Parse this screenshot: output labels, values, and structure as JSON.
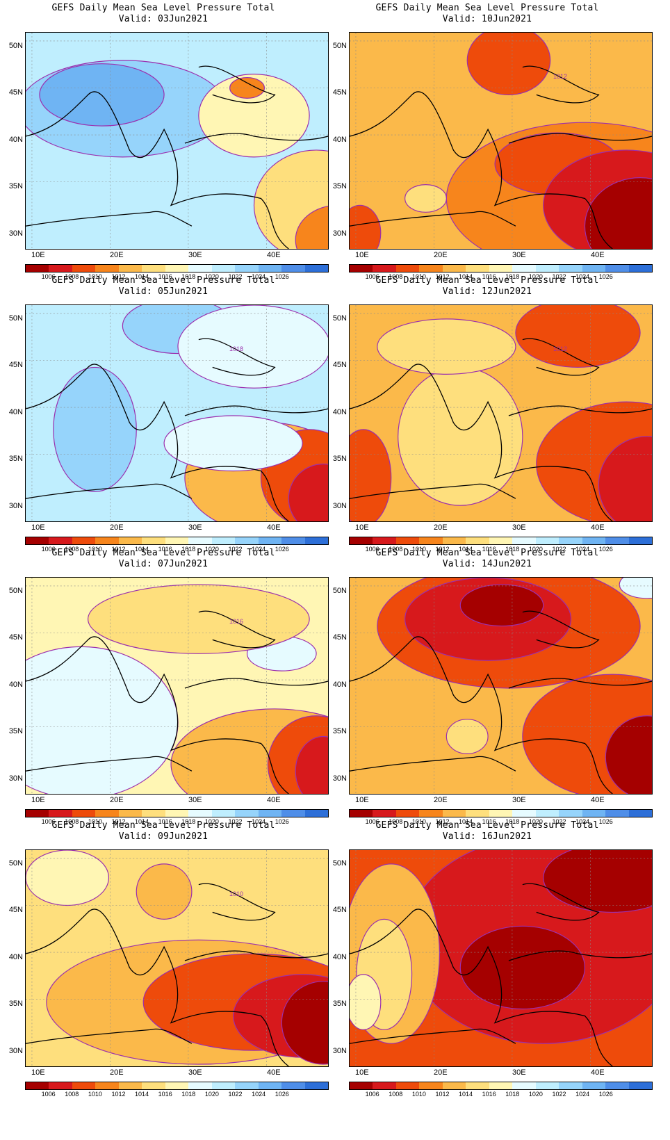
{
  "title_line": "GEFS Daily Mean Sea Level Pressure Total",
  "lat_labels": [
    "50N",
    "45N",
    "40N",
    "35N",
    "30N"
  ],
  "lon_labels": [
    "10E",
    "20E",
    "30E",
    "40E"
  ],
  "colorbar": {
    "labels": [
      "1006",
      "1008",
      "1010",
      "1012",
      "1014",
      "1016",
      "1018",
      "1020",
      "1022",
      "1024",
      "1026"
    ],
    "colors": [
      "#a50000",
      "#d7191c",
      "#ee4b0b",
      "#f7851c",
      "#fbb94a",
      "#fedf7d",
      "#fff6b4",
      "#e6fbff",
      "#bfeefe",
      "#96d4fb",
      "#6fb4f3",
      "#4f8ee8",
      "#2d6fd8"
    ]
  },
  "panels": [
    {
      "valid": "Valid: 03Jun2021",
      "base": "#bfeefe",
      "label": "",
      "blobs": [
        [
          "#96d4fb",
          140,
          110,
          150,
          70
        ],
        [
          "#6fb4f3",
          110,
          90,
          90,
          45
        ],
        [
          "#fedf7d",
          420,
          250,
          90,
          80
        ],
        [
          "#f7851c",
          450,
          300,
          60,
          50
        ],
        [
          "#fff6b4",
          330,
          120,
          80,
          60
        ],
        [
          "#f7851c",
          320,
          80,
          25,
          15
        ]
      ]
    },
    {
      "valid": "Valid: 10Jun2021",
      "base": "#fbb94a",
      "label": "1012",
      "blobs": [
        [
          "#f7851c",
          340,
          240,
          200,
          110
        ],
        [
          "#ee4b0b",
          300,
          190,
          90,
          45
        ],
        [
          "#d7191c",
          400,
          250,
          120,
          80
        ],
        [
          "#a50000",
          420,
          280,
          80,
          70
        ],
        [
          "#ee4b0b",
          230,
          40,
          60,
          50
        ],
        [
          "#ee4b0b",
          15,
          290,
          30,
          40
        ],
        [
          "#fedf7d",
          110,
          240,
          30,
          20
        ]
      ]
    },
    {
      "valid": "Valid: 05Jun2021",
      "base": "#bfeefe",
      "label": "1018",
      "blobs": [
        [
          "#96d4fb",
          100,
          180,
          60,
          90
        ],
        [
          "#96d4fb",
          220,
          30,
          80,
          40
        ],
        [
          "#e6fbff",
          330,
          60,
          110,
          60
        ],
        [
          "#fbb94a",
          350,
          250,
          120,
          80
        ],
        [
          "#ee4b0b",
          410,
          250,
          70,
          70
        ],
        [
          "#d7191c",
          430,
          280,
          50,
          50
        ],
        [
          "#e6fbff",
          300,
          200,
          100,
          40
        ]
      ]
    },
    {
      "valid": "Valid: 12Jun2021",
      "base": "#fbb94a",
      "label": "1012",
      "blobs": [
        [
          "#fedf7d",
          160,
          190,
          90,
          100
        ],
        [
          "#ee4b0b",
          400,
          230,
          130,
          90
        ],
        [
          "#d7191c",
          430,
          260,
          70,
          70
        ],
        [
          "#ee4b0b",
          330,
          40,
          90,
          50
        ],
        [
          "#ee4b0b",
          20,
          250,
          40,
          70
        ],
        [
          "#fedf7d",
          140,
          60,
          100,
          40
        ]
      ]
    },
    {
      "valid": "Valid: 07Jun2021",
      "base": "#fff6b4",
      "label": "1016",
      "blobs": [
        [
          "#e6fbff",
          80,
          210,
          140,
          110
        ],
        [
          "#e6fbff",
          370,
          110,
          50,
          25
        ],
        [
          "#fbb94a",
          360,
          270,
          150,
          80
        ],
        [
          "#ee4b0b",
          420,
          270,
          70,
          70
        ],
        [
          "#d7191c",
          430,
          280,
          40,
          50
        ],
        [
          "#fedf7d",
          250,
          60,
          160,
          50
        ]
      ]
    },
    {
      "valid": "Valid: 14Jun2021",
      "base": "#fbb94a",
      "label": "",
      "blobs": [
        [
          "#ee4b0b",
          230,
          70,
          190,
          90
        ],
        [
          "#d7191c",
          200,
          60,
          120,
          60
        ],
        [
          "#a50000",
          220,
          40,
          60,
          30
        ],
        [
          "#ee4b0b",
          380,
          230,
          130,
          90
        ],
        [
          "#a50000",
          430,
          260,
          60,
          60
        ],
        [
          "#fedf7d",
          170,
          230,
          30,
          25
        ],
        [
          "#e6fbff",
          430,
          10,
          40,
          20
        ]
      ]
    },
    {
      "valid": "Valid: 09Jun2021",
      "base": "#fedf7d",
      "label": "1010",
      "blobs": [
        [
          "#fbb94a",
          250,
          220,
          220,
          90
        ],
        [
          "#ee4b0b",
          330,
          220,
          160,
          70
        ],
        [
          "#d7191c",
          400,
          240,
          100,
          60
        ],
        [
          "#a50000",
          430,
          250,
          60,
          60
        ],
        [
          "#fbb94a",
          200,
          60,
          40,
          40
        ],
        [
          "#fff6b4",
          60,
          40,
          60,
          40
        ]
      ]
    },
    {
      "valid": "Valid: 16Jun2021",
      "base": "#ee4b0b",
      "label": "",
      "blobs": [
        [
          "#d7191c",
          280,
          130,
          200,
          150
        ],
        [
          "#a50000",
          250,
          170,
          90,
          60
        ],
        [
          "#a50000",
          380,
          40,
          100,
          50
        ],
        [
          "#fbb94a",
          60,
          150,
          70,
          130
        ],
        [
          "#fedf7d",
          50,
          180,
          40,
          80
        ],
        [
          "#fff6b4",
          20,
          220,
          25,
          40
        ]
      ]
    }
  ]
}
